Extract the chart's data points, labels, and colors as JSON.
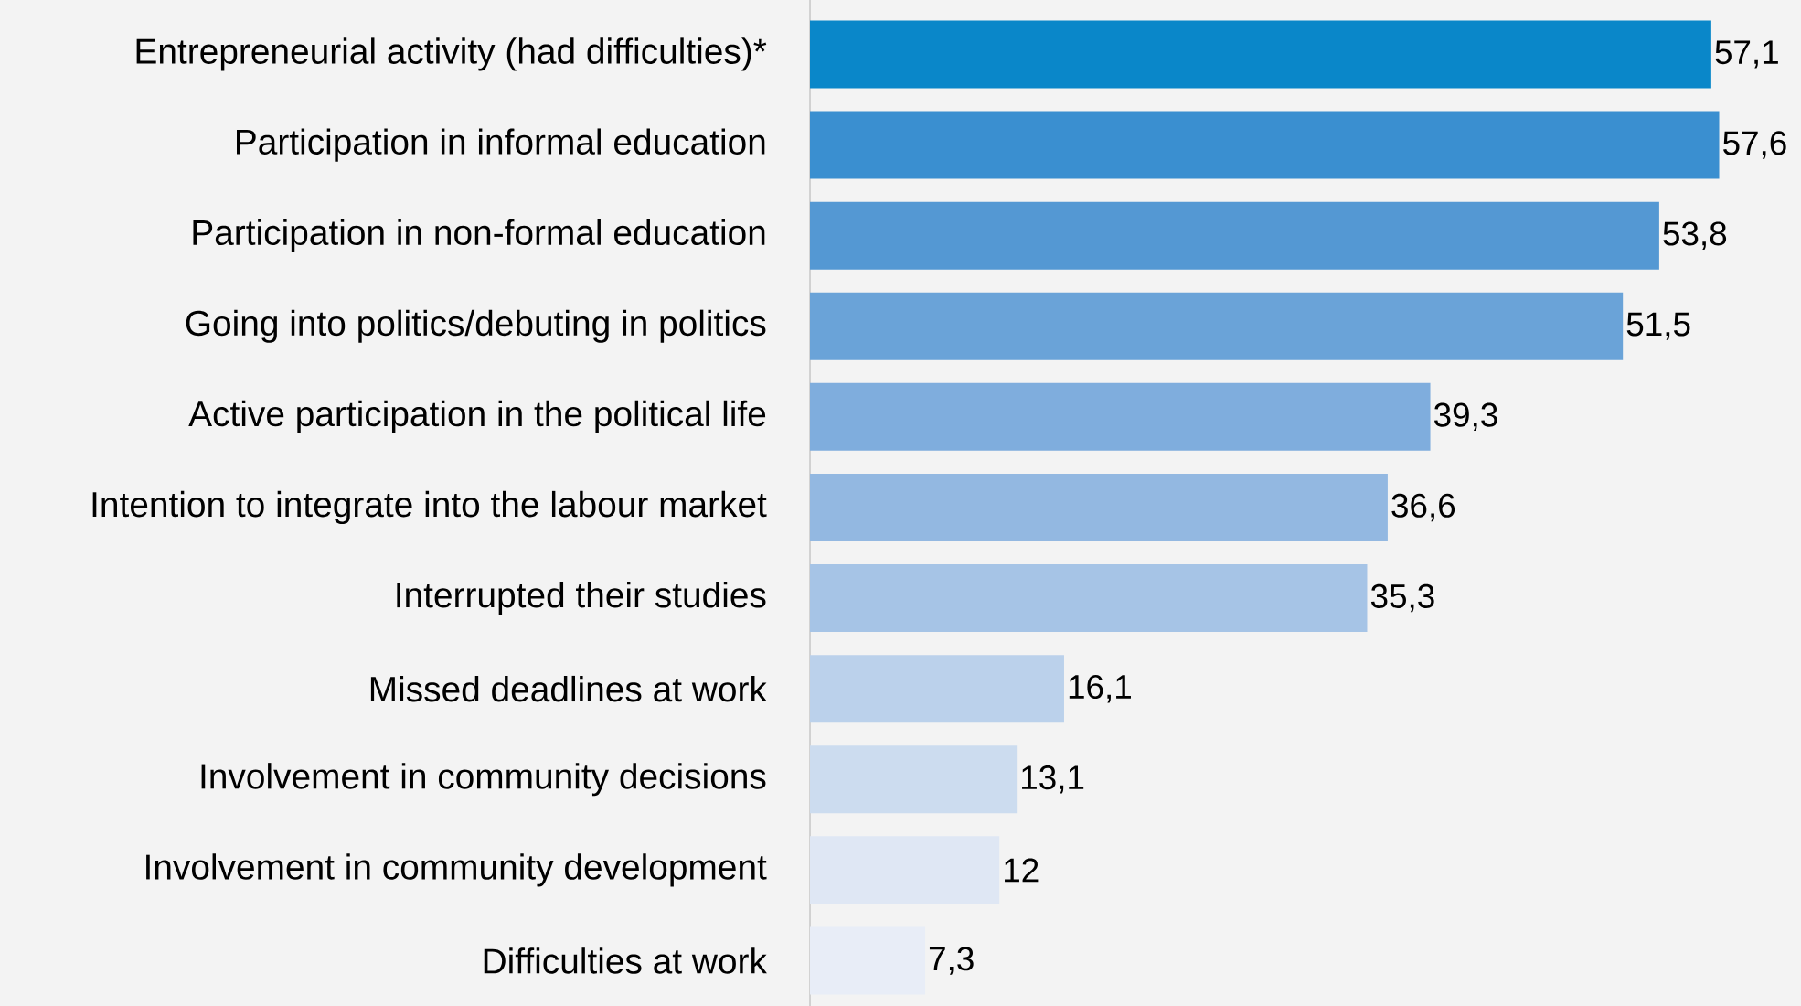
{
  "chart_data": {
    "type": "bar",
    "orientation": "horizontal",
    "categories": [
      "Entrepreneurial activity (had difficulties)*",
      "Participation in informal education",
      "Participation in non-formal education",
      "Going into politics/debuting in politics",
      "Active participation in the political life",
      "Intention to integrate into the labour market",
      "Interrupted their studies",
      "Missed deadlines at work",
      "Involvement in community decisions",
      "Involvement in community development",
      "Difficulties at work"
    ],
    "values": [
      57.1,
      57.6,
      53.8,
      51.5,
      39.3,
      36.6,
      35.3,
      16.1,
      13.1,
      12,
      7.3
    ],
    "value_labels": [
      "57,1",
      "57,6",
      "53,8",
      "51,5",
      "39,3",
      "36,6",
      "35,3",
      "16,1",
      "13,1",
      "12",
      "7,3"
    ],
    "colors": [
      "#0a87c9",
      "#3a8fd0",
      "#5498d3",
      "#6aa3d8",
      "#7faddd",
      "#93b8e1",
      "#a6c4e6",
      "#bbd1eb",
      "#ccdcef",
      "#dfe7f4",
      "#e8edf7"
    ]
  }
}
